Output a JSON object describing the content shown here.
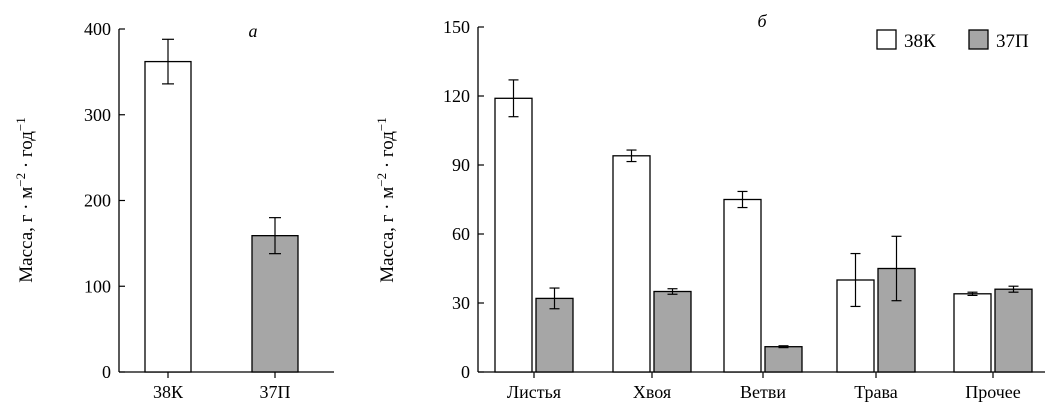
{
  "chart_data": [
    {
      "type": "bar",
      "panel_label": "а",
      "ylabel": "Масса, г · м⁻² · год⁻¹",
      "ylim": [
        0,
        400
      ],
      "yticks": [
        "0",
        "100",
        "200",
        "300",
        "400"
      ],
      "categories": [
        "38К",
        "37П"
      ],
      "values": [
        362,
        159
      ],
      "errors": [
        26,
        21
      ],
      "colors": [
        "#ffffff",
        "#a6a6a6"
      ]
    },
    {
      "type": "bar",
      "panel_label": "б",
      "ylabel": "Масса, г · м⁻² · год⁻¹",
      "ylim": [
        0,
        150
      ],
      "yticks": [
        "0",
        "30",
        "60",
        "90",
        "120",
        "150"
      ],
      "categories": [
        "Листья",
        "Хвоя",
        "Ветви",
        "Трава",
        "Прочее"
      ],
      "series": [
        {
          "name": "38К",
          "color": "#ffffff",
          "values": [
            119,
            94,
            75,
            40,
            34
          ],
          "errors": [
            8,
            2.5,
            3.5,
            11.5,
            0.7
          ]
        },
        {
          "name": "37П",
          "color": "#a6a6a6",
          "values": [
            32,
            35,
            11,
            45,
            36
          ],
          "errors": [
            4.5,
            1.2,
            0.4,
            14,
            1.3
          ]
        }
      ],
      "legend_position": "top-right"
    }
  ]
}
